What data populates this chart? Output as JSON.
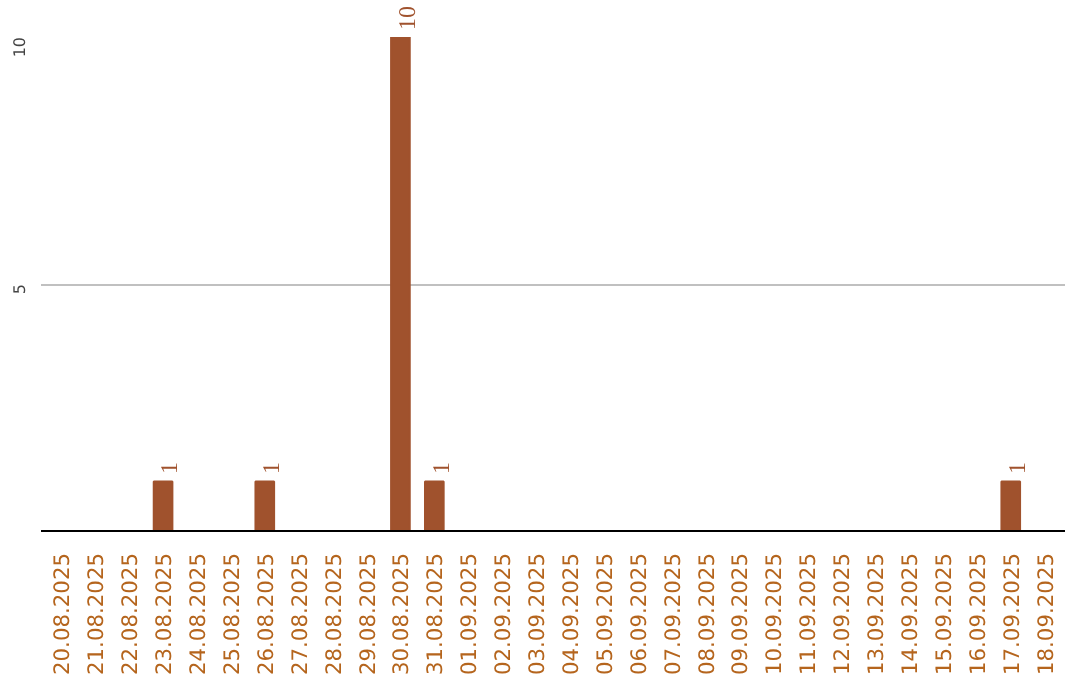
{
  "chart_data": {
    "type": "bar",
    "categories": [
      "20.08.2025",
      "21.08.2025",
      "22.08.2025",
      "23.08.2025",
      "24.08.2025",
      "25.08.2025",
      "26.08.2025",
      "27.08.2025",
      "28.08.2025",
      "29.08.2025",
      "30.08.2025",
      "31.08.2025",
      "01.09.2025",
      "02.09.2025",
      "03.09.2025",
      "04.09.2025",
      "05.09.2025",
      "06.09.2025",
      "07.09.2025",
      "08.09.2025",
      "09.09.2025",
      "10.09.2025",
      "11.09.2025",
      "12.09.2025",
      "13.09.2025",
      "14.09.2025",
      "15.09.2025",
      "16.09.2025",
      "17.09.2025",
      "18.09.2025"
    ],
    "values": [
      0,
      0,
      0,
      1,
      0,
      0,
      1,
      0,
      0,
      0,
      10,
      1,
      0,
      0,
      0,
      0,
      0,
      0,
      0,
      0,
      0,
      0,
      0,
      0,
      0,
      0,
      0,
      0,
      1,
      0
    ],
    "value_labels": [
      null,
      null,
      null,
      "1",
      null,
      null,
      "1",
      null,
      null,
      null,
      "10",
      "1",
      null,
      null,
      null,
      null,
      null,
      null,
      null,
      null,
      null,
      null,
      null,
      null,
      null,
      null,
      null,
      null,
      "1",
      null
    ],
    "color": "#a0522d",
    "ylim": [
      0,
      10
    ],
    "yticks": [
      5,
      10
    ],
    "grid": "y"
  }
}
